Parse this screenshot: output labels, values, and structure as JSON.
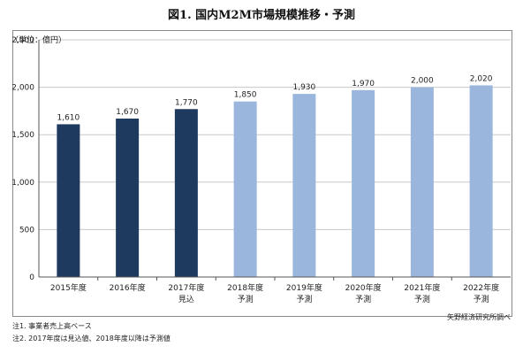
{
  "chart_data": {
    "type": "bar",
    "title": "図1.  国内M2M市場規模推移・予測",
    "ylabel": "（単位：億円）",
    "xlabel": "",
    "categories": [
      [
        "2015年度"
      ],
      [
        "2016年度"
      ],
      [
        "2017年度",
        "見込"
      ],
      [
        "2018年度",
        "予測"
      ],
      [
        "2019年度",
        "予測"
      ],
      [
        "2020年度",
        "予測"
      ],
      [
        "2021年度",
        "予測"
      ],
      [
        "2022年度",
        "予測"
      ]
    ],
    "values": [
      1610,
      1670,
      1770,
      1850,
      1930,
      1970,
      2000,
      2020
    ],
    "value_labels": [
      "1,610",
      "1,670",
      "1,770",
      "1,850",
      "1,930",
      "1,970",
      "2,000",
      "2,020"
    ],
    "bar_kinds": [
      "actual",
      "actual",
      "estimate",
      "forecast",
      "forecast",
      "forecast",
      "forecast",
      "forecast"
    ],
    "ylim": [
      0,
      2500
    ],
    "yticks": [
      0,
      500,
      1000,
      1500,
      2000,
      2500
    ],
    "ytick_labels": [
      "0",
      "500",
      "1,000",
      "1,500",
      "2,000",
      "2,500"
    ],
    "grid": true,
    "legend": "none",
    "colors": {
      "actual": "#1f3a5f",
      "estimate": "#1f3a5f",
      "forecast": "#9ab6dc",
      "grid": "#c8c8c8",
      "axis": "#555555"
    }
  },
  "notes": [
    "注1. 事業者売上高ベース",
    "注2. 2017年度は見込値、2018年度以降は予測値"
  ],
  "source": "矢野経済研究所調べ"
}
